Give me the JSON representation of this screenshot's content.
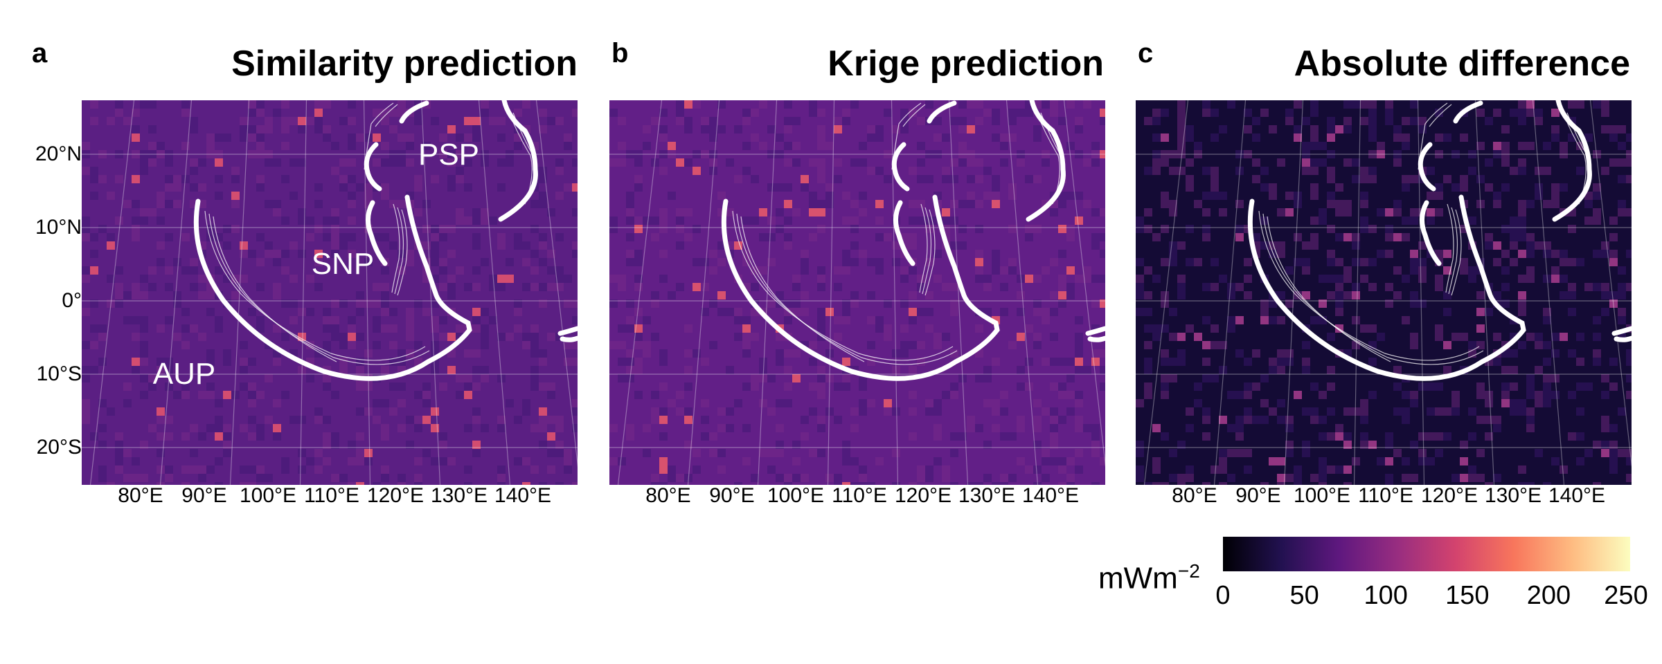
{
  "panels": [
    {
      "letter": "a",
      "title": "Similarity prediction",
      "bg": "#5b1f83",
      "hot": "#e0526e",
      "region_labels": [
        "PSP",
        "SNP",
        "AUP"
      ]
    },
    {
      "letter": "b",
      "title": "Krige prediction",
      "bg": "#621f87",
      "hot": "#e5586c",
      "region_labels": []
    },
    {
      "letter": "c",
      "title": "Absolute difference",
      "bg": "#140b35",
      "hot": "#a03a8a",
      "region_labels": []
    }
  ],
  "lat_labels": [
    "20°N",
    "10°N",
    "0°",
    "10°S",
    "20°S"
  ],
  "lon_labels": [
    "80°E",
    "90°E",
    "100°E",
    "110°E",
    "120°E",
    "130°E",
    "140°E"
  ],
  "colorbar": {
    "unit": "mWm",
    "unit_exp": "−2",
    "ticks": [
      "0",
      "50",
      "100",
      "150",
      "200",
      "250"
    ],
    "range": [
      0,
      250
    ],
    "colormap": "magma",
    "colors": [
      "#000004",
      "#221150",
      "#5f187f",
      "#982d80",
      "#d3436e",
      "#f8765c",
      "#febb81",
      "#fcfdbf"
    ]
  },
  "boundary_color": "#ffffff"
}
